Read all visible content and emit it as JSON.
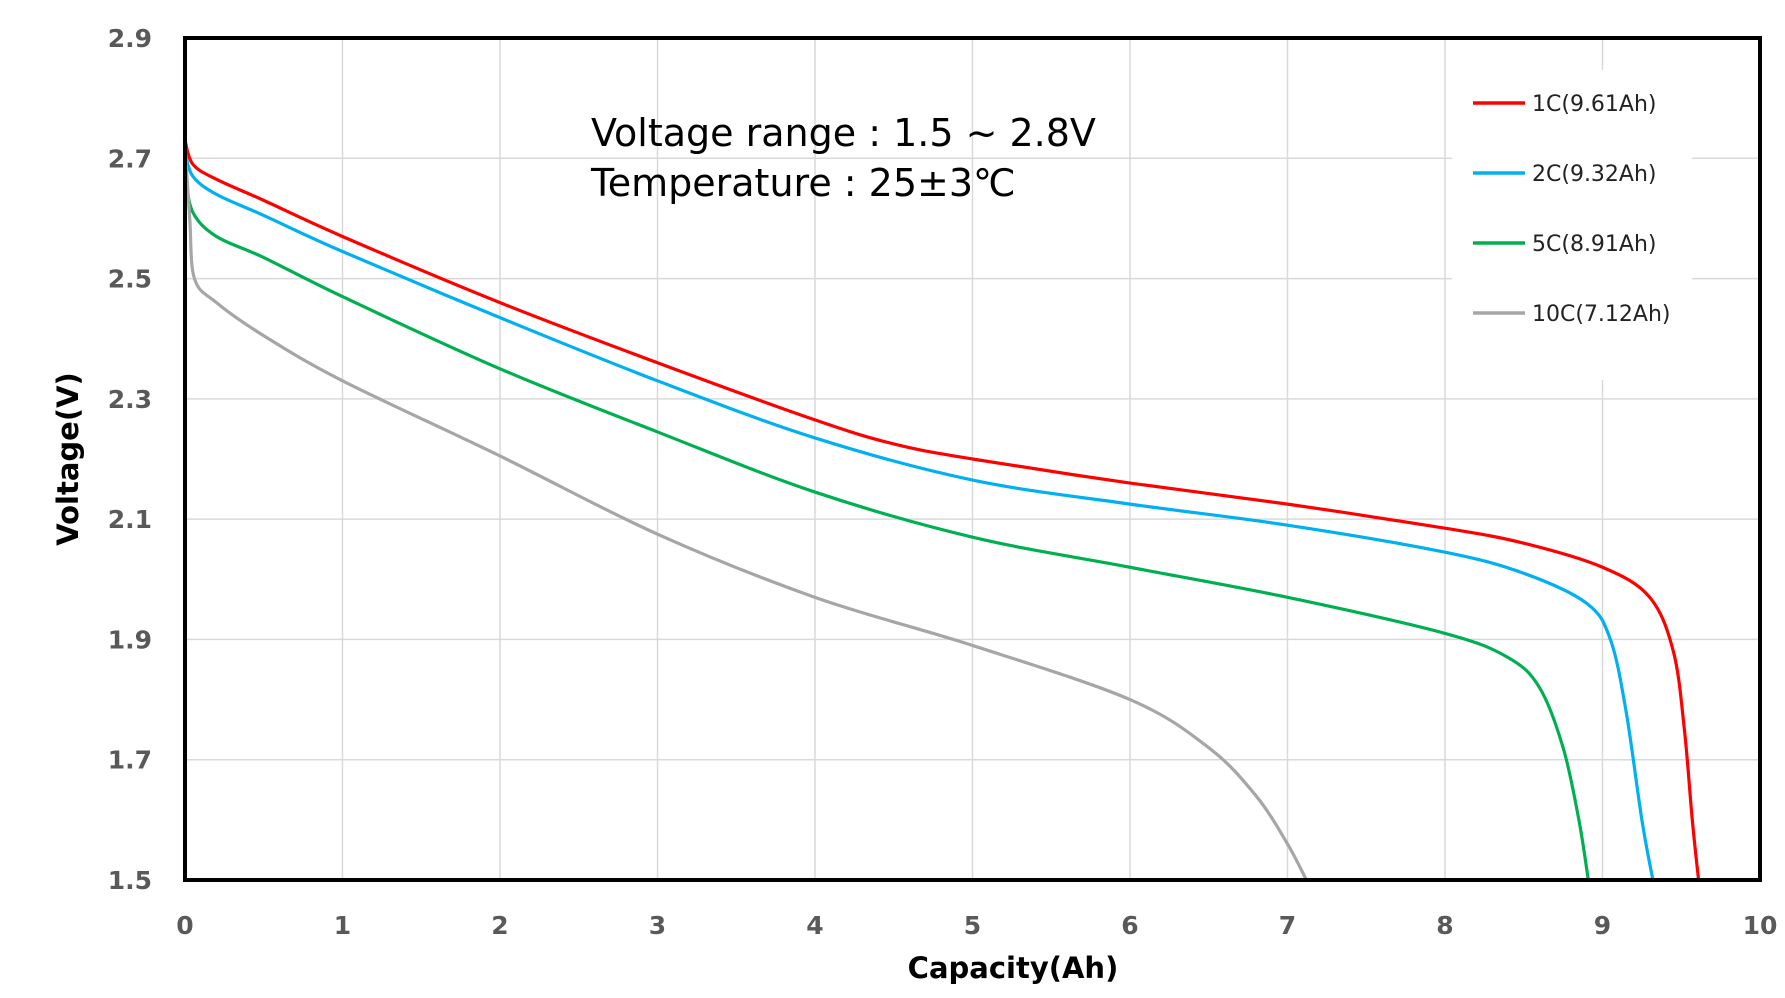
{
  "chart_data": {
    "type": "line",
    "title": "",
    "xlabel": "Capacity(Ah)",
    "ylabel": "Voltage(V)",
    "xlim": [
      0,
      10
    ],
    "ylim": [
      1.5,
      2.9
    ],
    "xticks": [
      "0",
      "1",
      "2",
      "3",
      "4",
      "5",
      "6",
      "7",
      "8",
      "9",
      "10"
    ],
    "yticks": [
      "1.5",
      "1.7",
      "1.9",
      "2.1",
      "2.3",
      "2.5",
      "2.7",
      "2.9"
    ],
    "grid": true,
    "legend_position": "top-right",
    "annotations": [
      "Voltage range : 1.5 ~ 2.8V",
      "Temperature : 25±3℃"
    ],
    "series": [
      {
        "name": "1C(9.61Ah)",
        "color": "#ff0000",
        "x": [
          0,
          0.05,
          0.2,
          0.5,
          1,
          2,
          3,
          4,
          4.5,
          5,
          6,
          7,
          8,
          8.5,
          9,
          9.3,
          9.45,
          9.52,
          9.57,
          9.61
        ],
        "y": [
          2.73,
          2.69,
          2.665,
          2.63,
          2.57,
          2.46,
          2.36,
          2.265,
          2.225,
          2.2,
          2.16,
          2.125,
          2.085,
          2.06,
          2.02,
          1.97,
          1.88,
          1.75,
          1.6,
          1.5
        ]
      },
      {
        "name": "2C(9.32Ah)",
        "color": "#00b0f0",
        "x": [
          0,
          0.05,
          0.2,
          0.5,
          1,
          2,
          3,
          4,
          5,
          6,
          7,
          8,
          8.5,
          8.9,
          9.05,
          9.15,
          9.25,
          9.32
        ],
        "y": [
          2.71,
          2.67,
          2.64,
          2.605,
          2.545,
          2.435,
          2.33,
          2.235,
          2.165,
          2.125,
          2.09,
          2.045,
          2.01,
          1.96,
          1.9,
          1.78,
          1.6,
          1.5
        ]
      },
      {
        "name": "5C(8.91Ah)",
        "color": "#00b050",
        "x": [
          0,
          0.05,
          0.2,
          0.5,
          1,
          2,
          3,
          4,
          5,
          6,
          7,
          8,
          8.4,
          8.6,
          8.75,
          8.85,
          8.91
        ],
        "y": [
          2.67,
          2.61,
          2.57,
          2.535,
          2.47,
          2.35,
          2.245,
          2.145,
          2.07,
          2.02,
          1.97,
          1.91,
          1.87,
          1.82,
          1.72,
          1.6,
          1.5
        ]
      },
      {
        "name": "10C(7.12Ah)",
        "color": "#a6a6a6",
        "x": [
          0,
          0.03,
          0.06,
          0.2,
          0.5,
          1,
          2,
          3,
          4,
          5,
          6,
          6.5,
          6.8,
          7,
          7.12
        ],
        "y": [
          2.72,
          2.6,
          2.5,
          2.46,
          2.405,
          2.33,
          2.205,
          2.075,
          1.97,
          1.89,
          1.8,
          1.72,
          1.64,
          1.56,
          1.5
        ]
      }
    ]
  }
}
